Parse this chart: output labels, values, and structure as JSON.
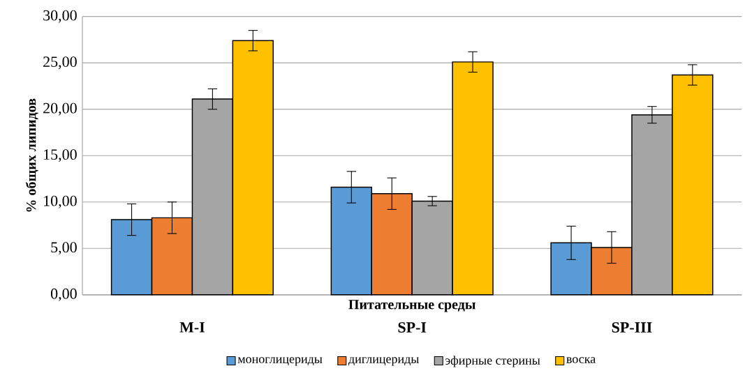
{
  "chart_data": {
    "type": "bar",
    "xlabel": "Питательные среды",
    "ylabel": "% общих липидов",
    "categories": [
      "M-I",
      "SP-I",
      "SP-III"
    ],
    "series": [
      {
        "name": "моноглицериды",
        "color": "#5b9bd5",
        "values": [
          8.1,
          11.6,
          5.6
        ],
        "errors": [
          1.7,
          1.7,
          1.8
        ]
      },
      {
        "name": "диглицериды",
        "color": "#ed7d31",
        "values": [
          8.3,
          10.9,
          5.1
        ],
        "errors": [
          1.7,
          1.7,
          1.7
        ]
      },
      {
        "name": "эфирные стерины",
        "color": "#a5a5a5",
        "values": [
          21.1,
          10.1,
          19.4
        ],
        "errors": [
          1.1,
          0.5,
          0.9
        ]
      },
      {
        "name": "воска",
        "color": "#ffc000",
        "values": [
          27.4,
          25.1,
          23.7
        ],
        "errors": [
          1.1,
          1.1,
          1.1
        ]
      }
    ],
    "ylim": [
      0,
      30
    ],
    "yticks": [
      {
        "value": 0,
        "label": "0,00"
      },
      {
        "value": 5,
        "label": "5,00"
      },
      {
        "value": 10,
        "label": "10,00"
      },
      {
        "value": 15,
        "label": "15,00"
      },
      {
        "value": 20,
        "label": "20,00"
      },
      {
        "value": 25,
        "label": "25,00"
      },
      {
        "value": 30,
        "label": "30,00"
      }
    ],
    "grid": "y",
    "legend": "bottom"
  }
}
